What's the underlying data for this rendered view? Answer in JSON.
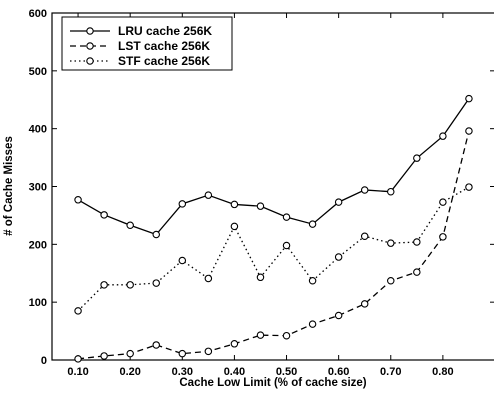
{
  "chart_data": {
    "type": "line",
    "title": "",
    "xlabel": "Cache Low Limit (% of cache size)",
    "ylabel": "# of Cache Misses",
    "xlim": [
      0.05,
      0.9
    ],
    "ylim": [
      0,
      600
    ],
    "xticks": [
      "0.10",
      "0.20",
      "0.30",
      "0.40",
      "0.50",
      "0.60",
      "0.70",
      "0.80"
    ],
    "xtick_values": [
      0.1,
      0.2,
      0.3,
      0.4,
      0.5,
      0.6,
      0.7,
      0.8
    ],
    "yticks": [
      "0",
      "100",
      "200",
      "300",
      "400",
      "500",
      "600"
    ],
    "ytick_values": [
      0,
      100,
      200,
      300,
      400,
      500,
      600
    ],
    "grid": false,
    "legend_position": "top-left",
    "x": [
      0.1,
      0.15,
      0.2,
      0.25,
      0.3,
      0.35,
      0.4,
      0.45,
      0.5,
      0.55,
      0.6,
      0.65,
      0.7,
      0.75,
      0.8,
      0.85
    ],
    "series": [
      {
        "name": "LRU cache 256K",
        "line_style": "solid",
        "values": [
          277,
          251,
          233,
          217,
          270,
          285,
          269,
          266,
          247,
          235,
          273,
          294,
          291,
          349,
          387,
          452
        ]
      },
      {
        "name": "LST cache 256K",
        "line_style": "dashed",
        "values": [
          2,
          7,
          11,
          26,
          11,
          15,
          28,
          43,
          42,
          62,
          77,
          97,
          137,
          152,
          213,
          396
        ]
      },
      {
        "name": "STF cache 256K",
        "line_style": "dotted",
        "values": [
          85,
          130,
          130,
          133,
          172,
          141,
          231,
          143,
          198,
          137,
          178,
          214,
          202,
          204,
          273,
          299
        ]
      }
    ]
  }
}
